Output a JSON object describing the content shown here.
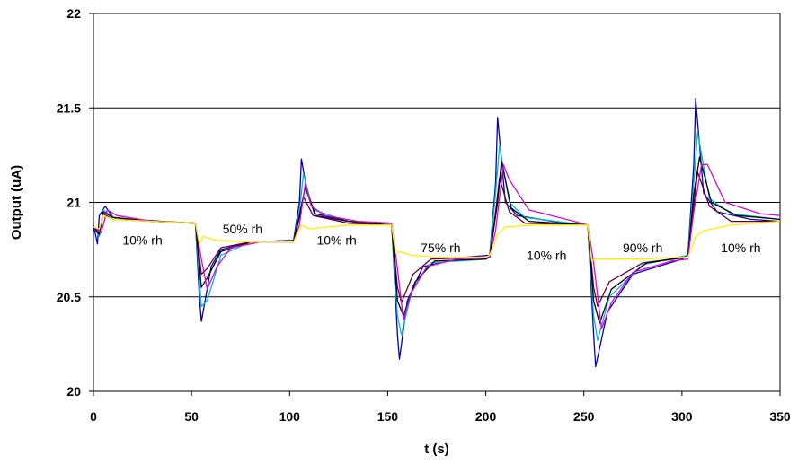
{
  "chart_data": {
    "type": "line",
    "title": "",
    "xlabel": "t (s)",
    "ylabel": "Output (uA)",
    "xlim": [
      0,
      350
    ],
    "ylim": [
      20,
      22
    ],
    "x_ticks": [
      0,
      50,
      100,
      150,
      200,
      250,
      300,
      350
    ],
    "y_ticks": [
      20,
      20.5,
      21,
      21.5,
      22
    ],
    "grid": "horizontal",
    "legend": "none",
    "annotations": [
      {
        "text": "10% rh",
        "x": 25,
        "y": 20.8
      },
      {
        "text": "50% rh",
        "x": 76,
        "y": 20.86
      },
      {
        "text": "10% rh",
        "x": 124,
        "y": 20.8
      },
      {
        "text": "75% rh",
        "x": 177,
        "y": 20.76
      },
      {
        "text": "10% rh",
        "x": 231,
        "y": 20.72
      },
      {
        "text": "90% rh",
        "x": 280,
        "y": 20.76
      },
      {
        "text": "10% rh",
        "x": 330,
        "y": 20.76
      }
    ],
    "series": [
      {
        "color": "#0000bb",
        "x": [
          0,
          2,
          3,
          6,
          10,
          20,
          35,
          52,
          54,
          55,
          60,
          65,
          80,
          102,
          105,
          106,
          109,
          113,
          130,
          152,
          155,
          156,
          160,
          168,
          190,
          202,
          205,
          206,
          210,
          216,
          240,
          252,
          255,
          256,
          262,
          275,
          300,
          303,
          306,
          307,
          311,
          318,
          335,
          350
        ],
        "y": [
          20.88,
          20.78,
          20.93,
          20.98,
          20.92,
          20.91,
          20.9,
          20.89,
          20.5,
          20.37,
          20.66,
          20.75,
          20.79,
          20.8,
          21.0,
          21.23,
          21.05,
          20.93,
          20.9,
          20.89,
          20.3,
          20.17,
          20.48,
          20.66,
          20.71,
          20.72,
          21.1,
          21.45,
          21.0,
          20.93,
          20.89,
          20.88,
          20.3,
          20.13,
          20.42,
          20.62,
          20.7,
          20.72,
          21.2,
          21.55,
          21.05,
          20.95,
          20.91,
          20.9
        ]
      },
      {
        "color": "#00bbcc",
        "x": [
          0,
          3,
          5,
          10,
          30,
          52,
          55,
          58,
          65,
          80,
          102,
          105,
          107,
          112,
          130,
          152,
          155,
          157,
          163,
          172,
          200,
          202,
          205,
          207,
          212,
          220,
          252,
          255,
          257,
          263,
          280,
          303,
          306,
          308,
          314,
          325,
          350
        ],
        "y": [
          20.87,
          20.82,
          20.96,
          20.92,
          20.9,
          20.89,
          20.45,
          20.48,
          20.72,
          20.79,
          20.79,
          20.95,
          21.15,
          20.96,
          20.9,
          20.88,
          20.4,
          20.3,
          20.56,
          20.68,
          20.7,
          20.71,
          21.05,
          21.3,
          21.0,
          20.92,
          20.88,
          20.4,
          20.27,
          20.5,
          20.67,
          20.72,
          21.1,
          21.37,
          21.02,
          20.94,
          20.91
        ]
      },
      {
        "color": "#660033",
        "x": [
          0,
          3,
          5,
          10,
          30,
          52,
          55,
          58,
          65,
          80,
          102,
          105,
          107,
          112,
          130,
          152,
          155,
          157,
          163,
          172,
          200,
          202,
          205,
          207,
          212,
          220,
          252,
          255,
          257,
          263,
          280,
          303,
          306,
          308,
          314,
          325,
          350
        ],
        "y": [
          20.87,
          20.83,
          20.94,
          20.91,
          20.9,
          20.89,
          20.62,
          20.65,
          20.76,
          20.79,
          20.79,
          20.92,
          21.03,
          20.93,
          20.89,
          20.88,
          20.55,
          20.47,
          20.62,
          20.7,
          20.71,
          20.71,
          20.95,
          21.13,
          20.95,
          20.89,
          20.88,
          20.55,
          20.45,
          20.58,
          20.68,
          20.71,
          20.98,
          21.16,
          20.98,
          20.9,
          20.9
        ]
      },
      {
        "color": "#000000",
        "x": [
          0,
          3,
          5,
          10,
          30,
          52,
          55,
          58,
          65,
          80,
          102,
          105,
          108,
          113,
          130,
          152,
          155,
          158,
          164,
          174,
          200,
          202,
          206,
          208,
          213,
          222,
          252,
          255,
          258,
          264,
          282,
          303,
          306,
          309,
          315,
          328,
          350
        ],
        "y": [
          20.87,
          20.83,
          20.95,
          20.92,
          20.9,
          20.89,
          20.55,
          20.6,
          20.74,
          20.79,
          20.79,
          20.93,
          21.08,
          20.94,
          20.9,
          20.88,
          20.48,
          20.4,
          20.58,
          20.69,
          20.7,
          20.71,
          21.0,
          21.22,
          20.97,
          20.9,
          20.88,
          20.48,
          20.36,
          20.54,
          20.68,
          20.71,
          21.04,
          21.24,
          21.0,
          20.93,
          20.91
        ]
      },
      {
        "color": "#dd00dd",
        "x": [
          0,
          4,
          7,
          12,
          30,
          52,
          55,
          58,
          63,
          70,
          85,
          102,
          105,
          108,
          111,
          118,
          135,
          152,
          155,
          158,
          162,
          170,
          185,
          202,
          205,
          209,
          212,
          222,
          245,
          252,
          255,
          259,
          264,
          275,
          295,
          303,
          306,
          310,
          313,
          322,
          340,
          350
        ],
        "y": [
          20.87,
          20.84,
          20.96,
          20.93,
          20.9,
          20.89,
          20.7,
          20.54,
          20.66,
          20.76,
          20.79,
          20.79,
          20.88,
          21.1,
          20.98,
          20.93,
          20.9,
          20.89,
          20.65,
          20.38,
          20.52,
          20.66,
          20.7,
          20.71,
          20.85,
          21.2,
          21.12,
          20.96,
          20.9,
          20.88,
          20.68,
          20.33,
          20.47,
          20.63,
          20.69,
          20.7,
          20.95,
          21.2,
          21.2,
          21.0,
          20.94,
          20.93
        ]
      },
      {
        "color": "#ffee00",
        "x": [
          0,
          3,
          5,
          10,
          30,
          52,
          54,
          56,
          62,
          80,
          102,
          104,
          106,
          110,
          130,
          152,
          154,
          156,
          162,
          175,
          200,
          202,
          204,
          206,
          210,
          225,
          252,
          254,
          256,
          262,
          280,
          303,
          305,
          307,
          311,
          325,
          350
        ],
        "y": [
          20.87,
          20.86,
          20.93,
          20.91,
          20.9,
          20.89,
          20.78,
          20.82,
          20.8,
          20.79,
          20.79,
          20.84,
          20.88,
          20.86,
          20.88,
          20.88,
          20.73,
          20.74,
          20.72,
          20.71,
          20.71,
          20.72,
          20.78,
          20.83,
          20.87,
          20.88,
          20.88,
          20.69,
          20.7,
          20.7,
          20.7,
          20.71,
          20.76,
          20.82,
          20.85,
          20.88,
          20.9
        ]
      }
    ]
  }
}
